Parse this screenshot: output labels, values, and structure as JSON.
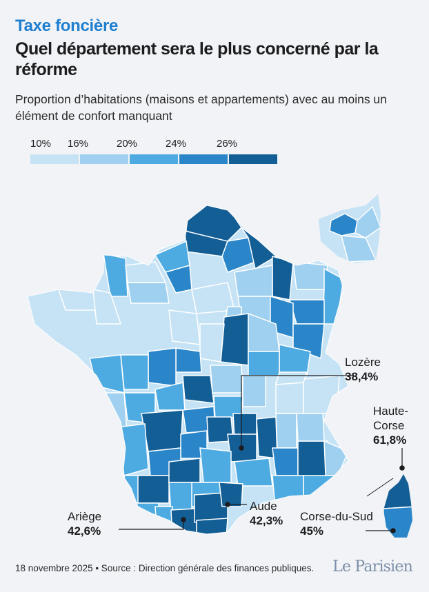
{
  "header": {
    "kicker": "Taxe foncière",
    "title": "Quel département sera le plus concerné par la réforme",
    "subtitle": "Proportion d’habitations (maisons et appartements) avec au moins un élément de confort manquant"
  },
  "legend": {
    "ticks": [
      "10%",
      "16%",
      "20%",
      "24%",
      "26%"
    ],
    "colors": [
      "#c6e3f5",
      "#9fd0ef",
      "#4eabe2",
      "#2a86c9",
      "#135e95"
    ]
  },
  "callouts": [
    {
      "name": "Lozère",
      "value": "38,4%"
    },
    {
      "name": "Haute-Corse",
      "value": "61,8%"
    },
    {
      "name": "Aude",
      "value": "42,3%"
    },
    {
      "name": "Corse-du-Sud",
      "value": "45%"
    },
    {
      "name": "Ariège",
      "value": "42,6%"
    }
  ],
  "map": {
    "colors": {
      "lightest": "#c6e3f5",
      "light": "#9fd0ef",
      "mid": "#4eabe2",
      "strong": "#2a86c9",
      "darkest": "#135e95",
      "border": "#ffffff",
      "leader": "#1c1c1e"
    }
  },
  "footer": {
    "source": "18 novembre 2025 • Source : Direction générale des finances publiques.",
    "logo": "Le Parisien"
  }
}
